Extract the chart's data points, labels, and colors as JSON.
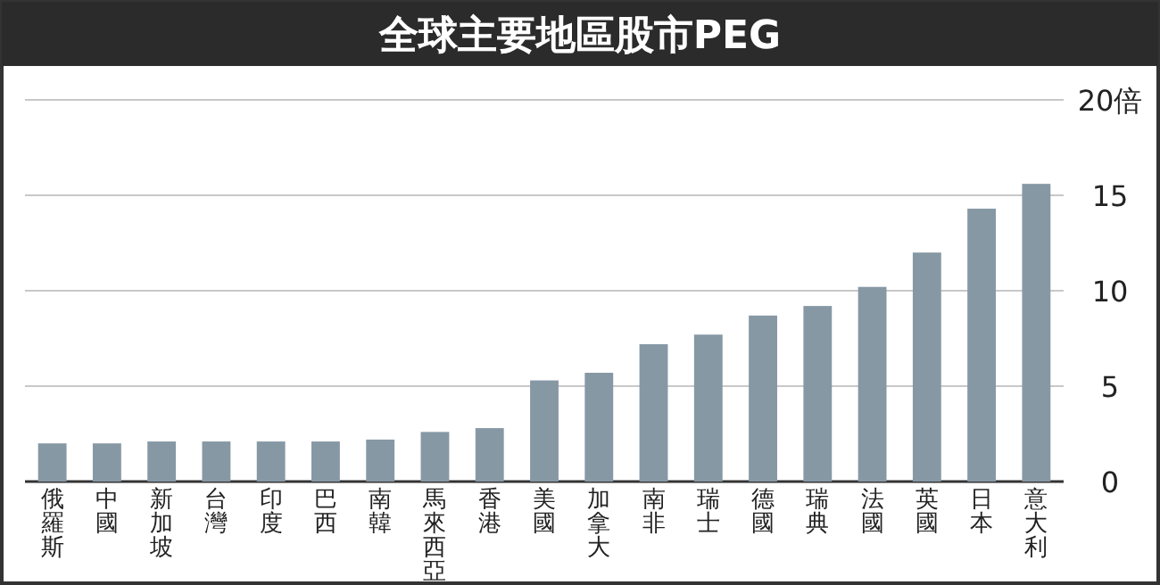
{
  "chart_data": {
    "type": "bar",
    "title": "全球主要地區股市PEG",
    "categories": [
      "俄羅斯",
      "中國",
      "新加坡",
      "台灣",
      "印度",
      "巴西",
      "南韓",
      "馬來西亞",
      "香港",
      "美國",
      "加拿大",
      "南非",
      "瑞士",
      "德國",
      "瑞典",
      "法國",
      "英國",
      "日本",
      "意大利"
    ],
    "values": [
      2.0,
      2.0,
      2.1,
      2.1,
      2.1,
      2.1,
      2.2,
      2.6,
      2.8,
      5.3,
      5.7,
      7.2,
      7.7,
      8.7,
      9.2,
      10.2,
      12.0,
      14.3,
      15.6
    ],
    "color": "#8798a5",
    "ylim": [
      0,
      20
    ],
    "yticks": [
      0,
      5,
      10,
      15,
      {
        "value": 20,
        "label": "20倍"
      }
    ],
    "grid": "y"
  }
}
